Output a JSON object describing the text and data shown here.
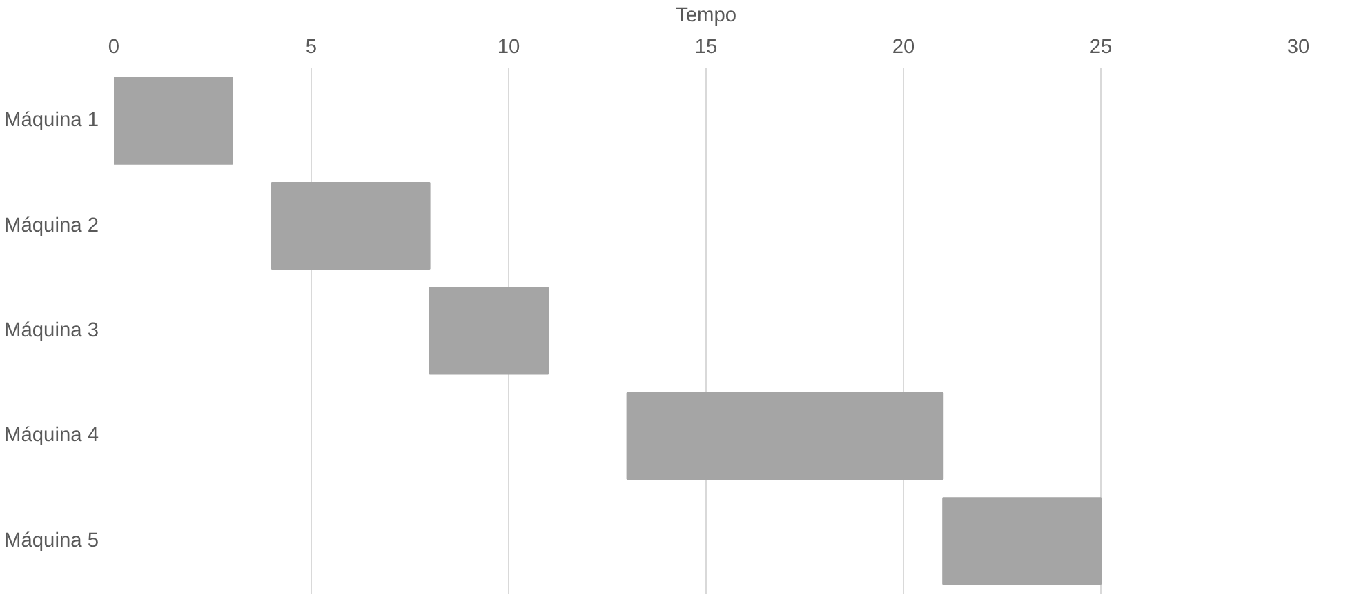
{
  "chart_data": {
    "type": "bar",
    "orientation": "horizontal",
    "xlabel": "Tempo",
    "categories": [
      "Máquina 1",
      "Máquina 2",
      "Máquina 3",
      "Máquina 4",
      "Máquina 5"
    ],
    "base": [
      0,
      4,
      8,
      13,
      21
    ],
    "values": [
      3,
      4,
      3,
      8,
      4
    ],
    "color": "#a5a5a5",
    "xlim": [
      0,
      30
    ],
    "xticks": [
      0,
      5,
      10,
      15,
      20,
      25,
      30
    ],
    "grid": "x"
  }
}
